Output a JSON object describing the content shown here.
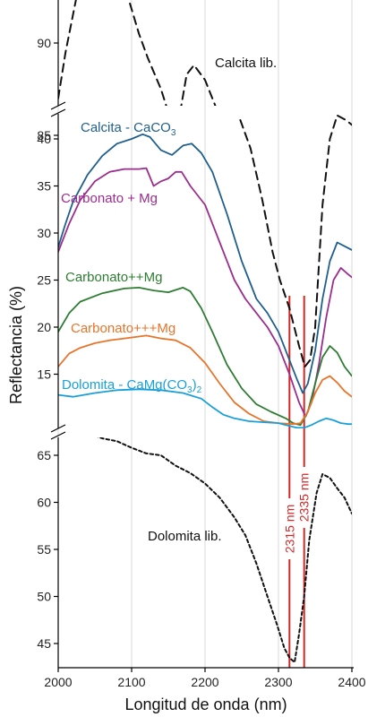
{
  "chart_data": {
    "type": "line",
    "xlabel": "Longitud de onda (nm)",
    "ylabel": "Reflectancia (%)",
    "xlim": [
      2000,
      2400
    ],
    "x_ticks": [
      "2000",
      "2100",
      "2200",
      "2300",
      "2400"
    ],
    "grid": "vertical",
    "panels": [
      {
        "name": "top",
        "ylim": [
          82,
          94
        ],
        "y_ticks": [
          "85",
          "90"
        ],
        "series": [
          {
            "name": "Calcita lib.",
            "color": "#111111",
            "dash": "dashed",
            "points": [
              [
                2000,
                87
              ],
              [
                2010,
                89.5
              ],
              [
                2025,
                92.5
              ],
              [
                2040,
                93.4
              ],
              [
                2055,
                93.8
              ],
              [
                2068,
                94
              ],
              [
                2080,
                93.6
              ],
              [
                2095,
                92.5
              ],
              [
                2110,
                90.5
              ],
              [
                2122,
                89.2
              ],
              [
                2140,
                87.5
              ],
              [
                2152,
                86
              ],
              [
                2165,
                86
              ],
              [
                2175,
                88.3
              ],
              [
                2185,
                88.8
              ],
              [
                2200,
                88
              ],
              [
                2215,
                86.5
              ],
              [
                2230,
                84.5
              ],
              [
                2242,
                83
              ],
              [
                2250,
                82
              ]
            ]
          }
        ]
      },
      {
        "name": "middle",
        "ylim": [
          11,
          42
        ],
        "y_ticks": [
          "15",
          "20",
          "25",
          "30",
          "35",
          "40"
        ],
        "series": [
          {
            "name": "Calcita lib.",
            "color": "#111111",
            "dash": "dashed",
            "points": [
              [
                2248,
                42
              ],
              [
                2262,
                39
              ],
              [
                2278,
                33.5
              ],
              [
                2292,
                28
              ],
              [
                2302,
                25
              ],
              [
                2315,
                22
              ],
              [
                2328,
                18
              ],
              [
                2336,
                15.8
              ],
              [
                2343,
                16.5
              ],
              [
                2350,
                20
              ],
              [
                2360,
                33
              ],
              [
                2370,
                40
              ],
              [
                2380,
                42.5
              ],
              [
                2392,
                42
              ],
              [
                2400,
                41.5
              ]
            ]
          },
          {
            "name": "Calcita - CaCO3",
            "label": "Calcita - CaCO",
            "sub": "3",
            "color": "#1f5f8e",
            "points": [
              [
                2000,
                28.5
              ],
              [
                2010,
                31
              ],
              [
                2020,
                33.3
              ],
              [
                2040,
                36.2
              ],
              [
                2060,
                38.2
              ],
              [
                2080,
                39.5
              ],
              [
                2100,
                40
              ],
              [
                2115,
                40.5
              ],
              [
                2125,
                40.2
              ],
              [
                2140,
                38.8
              ],
              [
                2155,
                38.3
              ],
              [
                2170,
                39.3
              ],
              [
                2182,
                39.5
              ],
              [
                2195,
                38.5
              ],
              [
                2210,
                36.5
              ],
              [
                2230,
                32
              ],
              [
                2250,
                27
              ],
              [
                2270,
                23
              ],
              [
                2285,
                21.5
              ],
              [
                2300,
                19.5
              ],
              [
                2315,
                16.5
              ],
              [
                2325,
                14.5
              ],
              [
                2333,
                13
              ],
              [
                2340,
                14
              ],
              [
                2350,
                17.5
              ],
              [
                2360,
                23
              ],
              [
                2370,
                27
              ],
              [
                2380,
                29
              ],
              [
                2390,
                28.6
              ],
              [
                2400,
                28.2
              ]
            ]
          },
          {
            "name": "Carbonato + Mg",
            "label": "Carbonato + Mg",
            "color": "#9b2d8e",
            "points": [
              [
                2000,
                28
              ],
              [
                2015,
                31
              ],
              [
                2030,
                33.5
              ],
              [
                2050,
                35.5
              ],
              [
                2070,
                36.5
              ],
              [
                2090,
                36.8
              ],
              [
                2110,
                36.8
              ],
              [
                2120,
                36.9
              ],
              [
                2130,
                35
              ],
              [
                2140,
                35.5
              ],
              [
                2150,
                35.8
              ],
              [
                2160,
                36.5
              ],
              [
                2168,
                36.5
              ],
              [
                2180,
                35
              ],
              [
                2200,
                33
              ],
              [
                2220,
                29
              ],
              [
                2240,
                25
              ],
              [
                2255,
                23
              ],
              [
                2270,
                21.5
              ],
              [
                2285,
                20
              ],
              [
                2300,
                18
              ],
              [
                2315,
                15
              ],
              [
                2328,
                12
              ],
              [
                2337,
                10.5
              ],
              [
                2345,
                12
              ],
              [
                2355,
                16
              ],
              [
                2365,
                21
              ],
              [
                2375,
                25
              ],
              [
                2385,
                26.3
              ],
              [
                2395,
                25.6
              ],
              [
                2400,
                25.3
              ]
            ]
          },
          {
            "name": "Carbonato++Mg",
            "label": "Carbonato++Mg",
            "color": "#2e7d32",
            "points": [
              [
                2000,
                19.5
              ],
              [
                2015,
                21.5
              ],
              [
                2030,
                22.7
              ],
              [
                2060,
                23.6
              ],
              [
                2090,
                24.1
              ],
              [
                2110,
                24.2
              ],
              [
                2130,
                23.9
              ],
              [
                2150,
                23.7
              ],
              [
                2170,
                24.2
              ],
              [
                2180,
                23.8
              ],
              [
                2195,
                22
              ],
              [
                2210,
                19.5
              ],
              [
                2230,
                16
              ],
              [
                2250,
                13.5
              ],
              [
                2270,
                11.8
              ],
              [
                2290,
                11
              ],
              [
                2310,
                10.3
              ],
              [
                2320,
                9.8
              ],
              [
                2330,
                9.6
              ],
              [
                2340,
                11
              ],
              [
                2350,
                14
              ],
              [
                2360,
                16.8
              ],
              [
                2370,
                18
              ],
              [
                2380,
                17.3
              ],
              [
                2390,
                15.8
              ],
              [
                2400,
                14.8
              ]
            ]
          },
          {
            "name": "Carbonato+++Mg",
            "label": "Carbonato+++Mg",
            "color": "#e8742a",
            "points": [
              [
                2000,
                15.8
              ],
              [
                2015,
                17.2
              ],
              [
                2030,
                17.8
              ],
              [
                2050,
                18.3
              ],
              [
                2070,
                18.6
              ],
              [
                2090,
                18.8
              ],
              [
                2110,
                19
              ],
              [
                2120,
                19.1
              ],
              [
                2140,
                18.8
              ],
              [
                2160,
                18.6
              ],
              [
                2180,
                17.8
              ],
              [
                2200,
                16.2
              ],
              [
                2220,
                14
              ],
              [
                2240,
                12
              ],
              [
                2260,
                10.8
              ],
              [
                2280,
                10
              ],
              [
                2300,
                9.8
              ],
              [
                2320,
                9.7
              ],
              [
                2330,
                9.8
              ],
              [
                2340,
                11
              ],
              [
                2350,
                13
              ],
              [
                2360,
                14.4
              ],
              [
                2370,
                14.8
              ],
              [
                2380,
                14.1
              ],
              [
                2390,
                13.2
              ],
              [
                2400,
                12.6
              ]
            ]
          },
          {
            "name": "Dolomita - CaMg(CO3)2",
            "label": "Dolomita - CaMg(CO",
            "sub": "3",
            "suffix": ")",
            "sub2": "2",
            "color": "#1aa0d8",
            "points": [
              [
                2000,
                12.8
              ],
              [
                2020,
                12.6
              ],
              [
                2050,
                13
              ],
              [
                2080,
                13.3
              ],
              [
                2110,
                13.4
              ],
              [
                2140,
                13.3
              ],
              [
                2170,
                13
              ],
              [
                2195,
                12.4
              ],
              [
                2210,
                11.5
              ],
              [
                2225,
                10.7
              ],
              [
                2240,
                10.3
              ],
              [
                2260,
                10
              ],
              [
                2280,
                9.9
              ],
              [
                2300,
                9.8
              ],
              [
                2315,
                9.5
              ],
              [
                2325,
                9.3
              ],
              [
                2335,
                9.3
              ],
              [
                2345,
                9.6
              ],
              [
                2355,
                10
              ],
              [
                2365,
                10.3
              ],
              [
                2375,
                10.1
              ],
              [
                2385,
                9.8
              ],
              [
                2395,
                9.7
              ],
              [
                2400,
                9.7
              ]
            ]
          }
        ]
      },
      {
        "name": "bottom",
        "ylim": [
          43,
          68
        ],
        "y_ticks": [
          "45",
          "50",
          "55",
          "60",
          "65"
        ],
        "series": [
          {
            "name": "Dolomita lib.",
            "color": "#111111",
            "dash": "dotted",
            "points": [
              [
                2000,
                67.5
              ],
              [
                2015,
                67.4
              ],
              [
                2025,
                68
              ],
              [
                2040,
                67.4
              ],
              [
                2060,
                66.8
              ],
              [
                2080,
                66.5
              ],
              [
                2100,
                65.8
              ],
              [
                2120,
                65.2
              ],
              [
                2140,
                65
              ],
              [
                2160,
                63.9
              ],
              [
                2180,
                63.1
              ],
              [
                2200,
                62
              ],
              [
                2220,
                60.5
              ],
              [
                2240,
                58.4
              ],
              [
                2255,
                56.5
              ],
              [
                2270,
                53.5
              ],
              [
                2285,
                50
              ],
              [
                2298,
                47
              ],
              [
                2308,
                44.5
              ],
              [
                2315,
                43.5
              ],
              [
                2322,
                43
              ],
              [
                2328,
                46
              ],
              [
                2335,
                50
              ],
              [
                2342,
                56
              ],
              [
                2352,
                61
              ],
              [
                2360,
                63
              ],
              [
                2370,
                62.6
              ],
              [
                2380,
                61.5
              ],
              [
                2390,
                60.5
              ],
              [
                2400,
                58.8
              ]
            ]
          }
        ]
      }
    ],
    "annotations": [
      {
        "type": "vline",
        "x": 2315,
        "label": "2315 nm",
        "color": "#d62728"
      },
      {
        "type": "vline",
        "x": 2335,
        "label": "2335 nm",
        "color": "#d62728"
      }
    ],
    "series_labels": [
      {
        "text": "Calcita lib."
      },
      {
        "text": "Calcita - CaCO",
        "sub": "3"
      },
      {
        "text": "Carbonato + Mg"
      },
      {
        "text": "Carbonato++Mg"
      },
      {
        "text": "Carbonato+++Mg"
      },
      {
        "text": "Dolomita - CaMg(CO",
        "sub": "3",
        "suffix": ")",
        "sub2": "2"
      },
      {
        "text": "Dolomita lib."
      }
    ]
  }
}
